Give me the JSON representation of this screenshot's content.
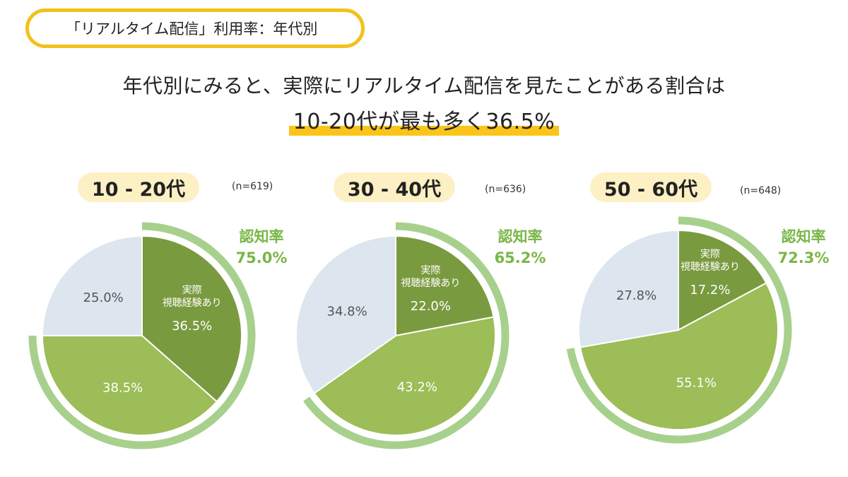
{
  "title_badge": "「リアルタイム配信」利用率：年代別",
  "headline": {
    "line1": "年代別にみると、実際にリアルタイム配信を見たことがある割合は",
    "line2": "10-20代が最も多く36.5%"
  },
  "colors": {
    "accent_yellow": "#f2c11b",
    "highlight_yellow": "#fbc418",
    "pill_bg": "#fdf0c4",
    "dark_green": "#7a9a3f",
    "mid_green": "#9cbd57",
    "light_blue": "#dde5ee",
    "ring_green": "#a8d08d",
    "awareness_text": "#7ab648"
  },
  "chart_data": [
    {
      "type": "pie",
      "group": "10 - 20代",
      "n_label": "(n=619)",
      "awareness_label": "認知率",
      "awareness_value": "75.0%",
      "awareness_pct": 75.0,
      "slices": [
        {
          "label": "実際\n視聴経験あり",
          "value": 36.5,
          "display": "36.5%",
          "color": "#7a9a3f",
          "text_color": "#ffffff"
        },
        {
          "label": "",
          "value": 38.5,
          "display": "38.5%",
          "color": "#9cbd57",
          "text_color": "#ffffff"
        },
        {
          "label": "",
          "value": 25.0,
          "display": "25.0%",
          "color": "#dde5ee",
          "text_color": "#555555"
        }
      ]
    },
    {
      "type": "pie",
      "group": "30 - 40代",
      "n_label": "(n=636)",
      "awareness_label": "認知率",
      "awareness_value": "65.2%",
      "awareness_pct": 65.2,
      "slices": [
        {
          "label": "実際\n視聴経験あり",
          "value": 22.0,
          "display": "22.0%",
          "color": "#7a9a3f",
          "text_color": "#ffffff"
        },
        {
          "label": "",
          "value": 43.2,
          "display": "43.2%",
          "color": "#9cbd57",
          "text_color": "#ffffff"
        },
        {
          "label": "",
          "value": 34.8,
          "display": "34.8%",
          "color": "#dde5ee",
          "text_color": "#555555"
        }
      ]
    },
    {
      "type": "pie",
      "group": "50 - 60代",
      "n_label": "(n=648)",
      "awareness_label": "認知率",
      "awareness_value": "72.3%",
      "awareness_pct": 72.3,
      "slices": [
        {
          "label": "実際\n視聴経験あり",
          "value": 17.2,
          "display": "17.2%",
          "color": "#7a9a3f",
          "text_color": "#ffffff"
        },
        {
          "label": "",
          "value": 55.1,
          "display": "55.1%",
          "color": "#9cbd57",
          "text_color": "#ffffff"
        },
        {
          "label": "",
          "value": 27.8,
          "display": "27.8%",
          "color": "#dde5ee",
          "text_color": "#555555"
        }
      ]
    }
  ]
}
